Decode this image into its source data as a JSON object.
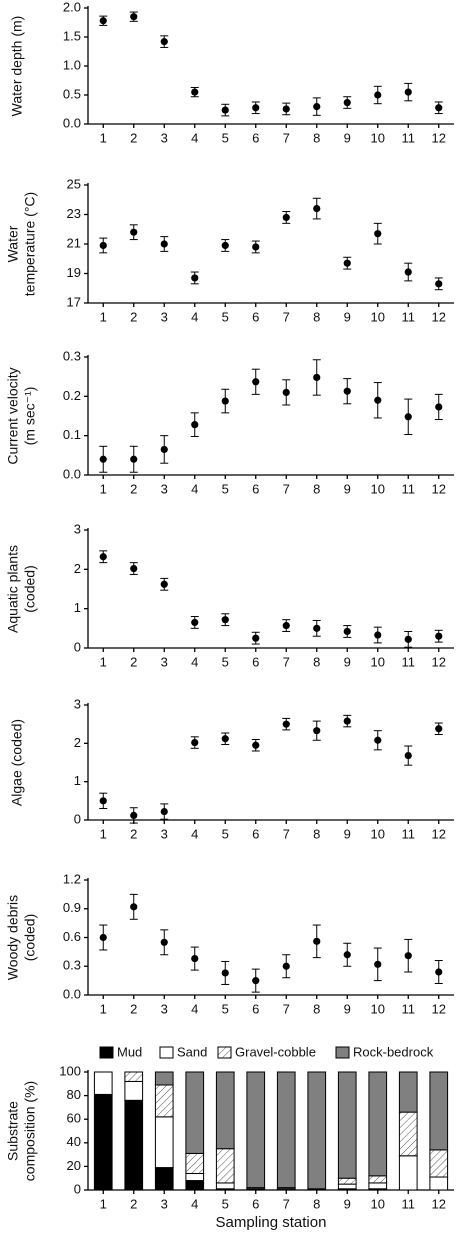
{
  "chart_data": [
    {
      "type": "scatter",
      "ylabel": [
        "Water depth (m)"
      ],
      "categories": [
        "1",
        "2",
        "3",
        "4",
        "5",
        "6",
        "7",
        "8",
        "9",
        "10",
        "11",
        "12"
      ],
      "values": [
        1.78,
        1.85,
        1.42,
        0.55,
        0.24,
        0.28,
        0.26,
        0.3,
        0.37,
        0.5,
        0.55,
        0.28
      ],
      "errors": [
        0.08,
        0.08,
        0.1,
        0.08,
        0.1,
        0.1,
        0.1,
        0.15,
        0.1,
        0.15,
        0.15,
        0.1
      ],
      "color": "#000000",
      "ylim": [
        0,
        2
      ],
      "yticks": [
        {
          "value": 0,
          "label": "0.0"
        },
        {
          "value": 0.5,
          "label": "0.5"
        },
        {
          "value": 1,
          "label": "1.0"
        },
        {
          "value": 1.5,
          "label": "1.5"
        },
        {
          "value": 2,
          "label": "2.0"
        }
      ]
    },
    {
      "type": "scatter",
      "ylabel": [
        "Water",
        "temperature (°C)"
      ],
      "categories": [
        "1",
        "2",
        "3",
        "4",
        "5",
        "6",
        "7",
        "8",
        "9",
        "10",
        "11",
        "12"
      ],
      "values": [
        20.9,
        21.8,
        21.0,
        18.7,
        20.9,
        20.8,
        22.8,
        23.4,
        19.7,
        21.7,
        19.1,
        18.3
      ],
      "errors": [
        0.5,
        0.5,
        0.5,
        0.4,
        0.4,
        0.4,
        0.4,
        0.7,
        0.4,
        0.7,
        0.6,
        0.4
      ],
      "color": "#000000",
      "ylim": [
        17,
        25
      ],
      "yticks": [
        17,
        19,
        21,
        23,
        25
      ]
    },
    {
      "type": "scatter",
      "ylabel": [
        "Current velocity",
        "(m sec⁻¹)"
      ],
      "categories": [
        "1",
        "2",
        "3",
        "4",
        "5",
        "6",
        "7",
        "8",
        "9",
        "10",
        "11",
        "12"
      ],
      "values": [
        0.04,
        0.04,
        0.065,
        0.128,
        0.188,
        0.237,
        0.21,
        0.248,
        0.213,
        0.19,
        0.148,
        0.173
      ],
      "errors": [
        0.033,
        0.033,
        0.035,
        0.03,
        0.03,
        0.032,
        0.032,
        0.045,
        0.032,
        0.045,
        0.045,
        0.032
      ],
      "color": "#000000",
      "ylim": [
        0,
        0.3
      ],
      "yticks": [
        {
          "value": 0,
          "label": "0.0"
        },
        0.1,
        0.2,
        0.3
      ]
    },
    {
      "type": "scatter",
      "ylabel": [
        "Aquatic plants",
        "(coded)"
      ],
      "categories": [
        "1",
        "2",
        "3",
        "4",
        "5",
        "6",
        "7",
        "8",
        "9",
        "10",
        "11",
        "12"
      ],
      "values": [
        2.32,
        2.02,
        1.62,
        0.65,
        0.72,
        0.25,
        0.57,
        0.5,
        0.42,
        0.33,
        0.22,
        0.3
      ],
      "errors": [
        0.15,
        0.15,
        0.15,
        0.15,
        0.15,
        0.15,
        0.15,
        0.2,
        0.15,
        0.2,
        0.2,
        0.15
      ],
      "color": "#000000",
      "ylim": [
        0,
        3
      ],
      "yticks": [
        0,
        1,
        2,
        3
      ]
    },
    {
      "type": "scatter",
      "ylabel": [
        "Algae (coded)"
      ],
      "categories": [
        "1",
        "2",
        "3",
        "4",
        "5",
        "6",
        "7",
        "8",
        "9",
        "10",
        "11",
        "12"
      ],
      "values": [
        0.5,
        0.12,
        0.22,
        2.02,
        2.12,
        1.95,
        2.5,
        2.33,
        2.58,
        2.08,
        1.68,
        2.38
      ],
      "errors": [
        0.2,
        0.2,
        0.2,
        0.15,
        0.15,
        0.15,
        0.15,
        0.25,
        0.15,
        0.25,
        0.25,
        0.15
      ],
      "color": "#000000",
      "ylim": [
        0,
        3
      ],
      "yticks": [
        0,
        1,
        2,
        3
      ]
    },
    {
      "type": "scatter",
      "ylabel": [
        "Woody debris",
        "(coded)"
      ],
      "categories": [
        "1",
        "2",
        "3",
        "4",
        "5",
        "6",
        "7",
        "8",
        "9",
        "10",
        "11",
        "12"
      ],
      "values": [
        0.6,
        0.92,
        0.55,
        0.38,
        0.23,
        0.15,
        0.3,
        0.56,
        0.42,
        0.32,
        0.41,
        0.24
      ],
      "errors": [
        0.13,
        0.13,
        0.13,
        0.12,
        0.12,
        0.12,
        0.12,
        0.17,
        0.12,
        0.17,
        0.17,
        0.12
      ],
      "color": "#000000",
      "ylim": [
        0,
        1.2
      ],
      "yticks": [
        {
          "value": 0,
          "label": "0.0"
        },
        0.3,
        0.6,
        0.9,
        1.2
      ]
    },
    {
      "type": "stacked_bar",
      "ylabel": [
        "Substrate",
        "composition (%)"
      ],
      "xlabel": "Sampling station",
      "categories": [
        "1",
        "2",
        "3",
        "4",
        "5",
        "6",
        "7",
        "8",
        "9",
        "10",
        "11",
        "12"
      ],
      "series": [
        {
          "name": "Mud",
          "color": "#000000",
          "values": [
            81,
            76,
            19,
            8,
            1,
            1,
            0,
            1,
            1,
            1,
            0,
            0
          ]
        },
        {
          "name": "Sand",
          "color": "#ffffff",
          "values": [
            19,
            16,
            43,
            6,
            5,
            0,
            1,
            0,
            4,
            5,
            29,
            11
          ]
        },
        {
          "name": "Gravel-cobble",
          "color": "#ffffff",
          "hatch": true,
          "values": [
            0,
            8,
            27,
            17,
            29,
            1,
            1,
            0,
            5,
            6,
            37,
            23
          ]
        },
        {
          "name": "Rock-bedrock",
          "color": "#808080",
          "values": [
            0,
            0,
            11,
            69,
            65,
            98,
            98,
            99,
            90,
            88,
            34,
            66
          ]
        }
      ],
      "ylim": [
        0,
        100
      ],
      "yticks": [
        0,
        20,
        40,
        60,
        80,
        100
      ]
    }
  ]
}
